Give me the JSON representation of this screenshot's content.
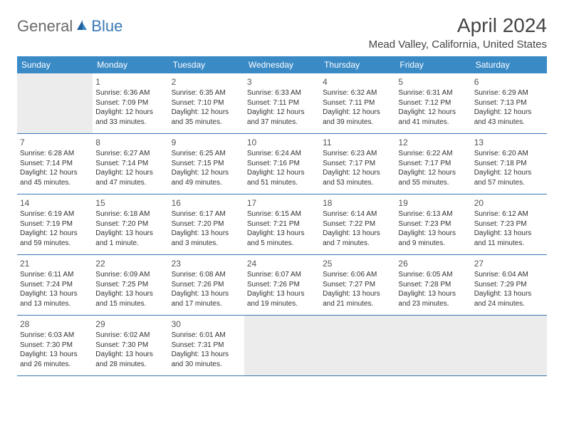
{
  "logo": {
    "text1": "General",
    "text2": "Blue"
  },
  "title": "April 2024",
  "location": "Mead Valley, California, United States",
  "daysOfWeek": [
    "Sunday",
    "Monday",
    "Tuesday",
    "Wednesday",
    "Thursday",
    "Friday",
    "Saturday"
  ],
  "colors": {
    "headerBlue": "#3a8ac6",
    "borderBlue": "#3a78b5",
    "emptyGray": "#ececec",
    "textGray": "#333333"
  },
  "weeks": [
    [
      null,
      {
        "n": "1",
        "sr": "Sunrise: 6:36 AM",
        "ss": "Sunset: 7:09 PM",
        "d1": "Daylight: 12 hours",
        "d2": "and 33 minutes."
      },
      {
        "n": "2",
        "sr": "Sunrise: 6:35 AM",
        "ss": "Sunset: 7:10 PM",
        "d1": "Daylight: 12 hours",
        "d2": "and 35 minutes."
      },
      {
        "n": "3",
        "sr": "Sunrise: 6:33 AM",
        "ss": "Sunset: 7:11 PM",
        "d1": "Daylight: 12 hours",
        "d2": "and 37 minutes."
      },
      {
        "n": "4",
        "sr": "Sunrise: 6:32 AM",
        "ss": "Sunset: 7:11 PM",
        "d1": "Daylight: 12 hours",
        "d2": "and 39 minutes."
      },
      {
        "n": "5",
        "sr": "Sunrise: 6:31 AM",
        "ss": "Sunset: 7:12 PM",
        "d1": "Daylight: 12 hours",
        "d2": "and 41 minutes."
      },
      {
        "n": "6",
        "sr": "Sunrise: 6:29 AM",
        "ss": "Sunset: 7:13 PM",
        "d1": "Daylight: 12 hours",
        "d2": "and 43 minutes."
      }
    ],
    [
      {
        "n": "7",
        "sr": "Sunrise: 6:28 AM",
        "ss": "Sunset: 7:14 PM",
        "d1": "Daylight: 12 hours",
        "d2": "and 45 minutes."
      },
      {
        "n": "8",
        "sr": "Sunrise: 6:27 AM",
        "ss": "Sunset: 7:14 PM",
        "d1": "Daylight: 12 hours",
        "d2": "and 47 minutes."
      },
      {
        "n": "9",
        "sr": "Sunrise: 6:25 AM",
        "ss": "Sunset: 7:15 PM",
        "d1": "Daylight: 12 hours",
        "d2": "and 49 minutes."
      },
      {
        "n": "10",
        "sr": "Sunrise: 6:24 AM",
        "ss": "Sunset: 7:16 PM",
        "d1": "Daylight: 12 hours",
        "d2": "and 51 minutes."
      },
      {
        "n": "11",
        "sr": "Sunrise: 6:23 AM",
        "ss": "Sunset: 7:17 PM",
        "d1": "Daylight: 12 hours",
        "d2": "and 53 minutes."
      },
      {
        "n": "12",
        "sr": "Sunrise: 6:22 AM",
        "ss": "Sunset: 7:17 PM",
        "d1": "Daylight: 12 hours",
        "d2": "and 55 minutes."
      },
      {
        "n": "13",
        "sr": "Sunrise: 6:20 AM",
        "ss": "Sunset: 7:18 PM",
        "d1": "Daylight: 12 hours",
        "d2": "and 57 minutes."
      }
    ],
    [
      {
        "n": "14",
        "sr": "Sunrise: 6:19 AM",
        "ss": "Sunset: 7:19 PM",
        "d1": "Daylight: 12 hours",
        "d2": "and 59 minutes."
      },
      {
        "n": "15",
        "sr": "Sunrise: 6:18 AM",
        "ss": "Sunset: 7:20 PM",
        "d1": "Daylight: 13 hours",
        "d2": "and 1 minute."
      },
      {
        "n": "16",
        "sr": "Sunrise: 6:17 AM",
        "ss": "Sunset: 7:20 PM",
        "d1": "Daylight: 13 hours",
        "d2": "and 3 minutes."
      },
      {
        "n": "17",
        "sr": "Sunrise: 6:15 AM",
        "ss": "Sunset: 7:21 PM",
        "d1": "Daylight: 13 hours",
        "d2": "and 5 minutes."
      },
      {
        "n": "18",
        "sr": "Sunrise: 6:14 AM",
        "ss": "Sunset: 7:22 PM",
        "d1": "Daylight: 13 hours",
        "d2": "and 7 minutes."
      },
      {
        "n": "19",
        "sr": "Sunrise: 6:13 AM",
        "ss": "Sunset: 7:23 PM",
        "d1": "Daylight: 13 hours",
        "d2": "and 9 minutes."
      },
      {
        "n": "20",
        "sr": "Sunrise: 6:12 AM",
        "ss": "Sunset: 7:23 PM",
        "d1": "Daylight: 13 hours",
        "d2": "and 11 minutes."
      }
    ],
    [
      {
        "n": "21",
        "sr": "Sunrise: 6:11 AM",
        "ss": "Sunset: 7:24 PM",
        "d1": "Daylight: 13 hours",
        "d2": "and 13 minutes."
      },
      {
        "n": "22",
        "sr": "Sunrise: 6:09 AM",
        "ss": "Sunset: 7:25 PM",
        "d1": "Daylight: 13 hours",
        "d2": "and 15 minutes."
      },
      {
        "n": "23",
        "sr": "Sunrise: 6:08 AM",
        "ss": "Sunset: 7:26 PM",
        "d1": "Daylight: 13 hours",
        "d2": "and 17 minutes."
      },
      {
        "n": "24",
        "sr": "Sunrise: 6:07 AM",
        "ss": "Sunset: 7:26 PM",
        "d1": "Daylight: 13 hours",
        "d2": "and 19 minutes."
      },
      {
        "n": "25",
        "sr": "Sunrise: 6:06 AM",
        "ss": "Sunset: 7:27 PM",
        "d1": "Daylight: 13 hours",
        "d2": "and 21 minutes."
      },
      {
        "n": "26",
        "sr": "Sunrise: 6:05 AM",
        "ss": "Sunset: 7:28 PM",
        "d1": "Daylight: 13 hours",
        "d2": "and 23 minutes."
      },
      {
        "n": "27",
        "sr": "Sunrise: 6:04 AM",
        "ss": "Sunset: 7:29 PM",
        "d1": "Daylight: 13 hours",
        "d2": "and 24 minutes."
      }
    ],
    [
      {
        "n": "28",
        "sr": "Sunrise: 6:03 AM",
        "ss": "Sunset: 7:30 PM",
        "d1": "Daylight: 13 hours",
        "d2": "and 26 minutes."
      },
      {
        "n": "29",
        "sr": "Sunrise: 6:02 AM",
        "ss": "Sunset: 7:30 PM",
        "d1": "Daylight: 13 hours",
        "d2": "and 28 minutes."
      },
      {
        "n": "30",
        "sr": "Sunrise: 6:01 AM",
        "ss": "Sunset: 7:31 PM",
        "d1": "Daylight: 13 hours",
        "d2": "and 30 minutes."
      },
      null,
      null,
      null,
      null
    ]
  ]
}
